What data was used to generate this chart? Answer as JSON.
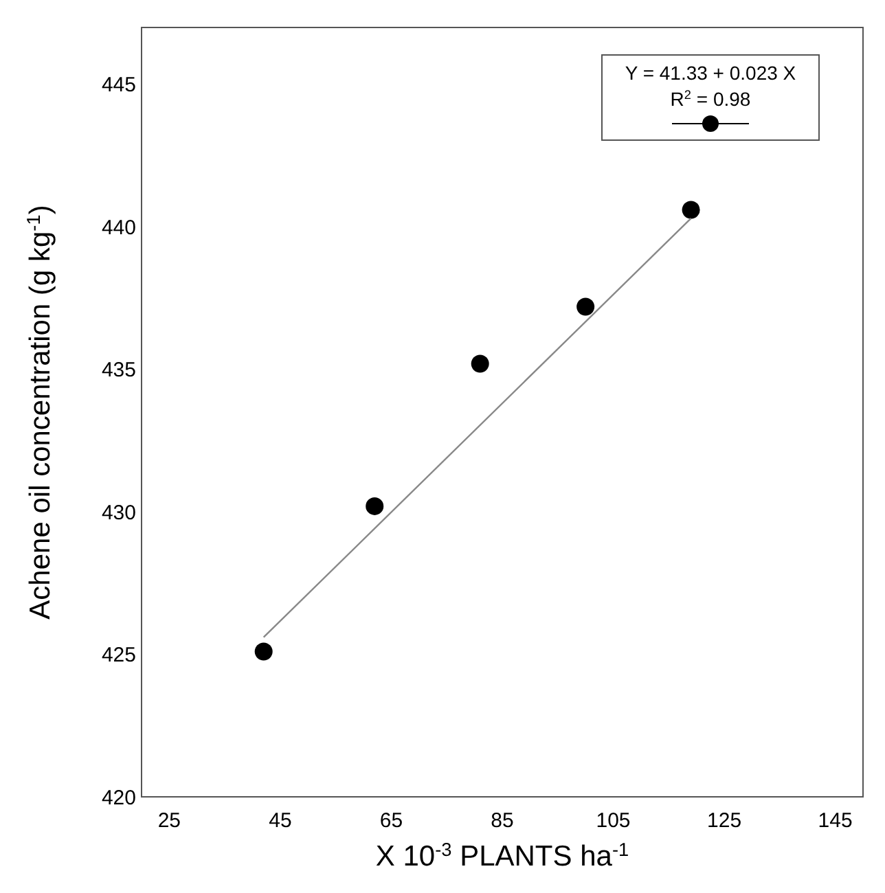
{
  "chart_data": {
    "type": "scatter",
    "xlabel": "X 10$^{-3}$ PLANTS ha$^{-1}$",
    "ylabel": "Achene oil concentration (g kg$^{-1}$)",
    "xlim": [
      20,
      150
    ],
    "xticks": [
      25,
      45,
      65,
      85,
      105,
      125,
      145
    ],
    "ylim": [
      420,
      447
    ],
    "yticks": [
      420,
      425,
      430,
      435,
      440,
      445
    ],
    "grid": false,
    "series": [
      {
        "type": "scatter",
        "color": "#000000",
        "marker": "circle",
        "x": [
          42,
          62,
          81,
          100,
          119
        ],
        "values": [
          425.1,
          430.2,
          435.2,
          437.2,
          440.6
        ]
      },
      {
        "type": "line",
        "color": "#888888",
        "marker": "none",
        "x": [
          42,
          119
        ],
        "values": [
          425.6,
          440.3
        ],
        "line_style": "solid"
      }
    ],
    "annotations": [
      "Y = 41.33 + 0.023 X",
      "R$^{2}$ = 0.98"
    ]
  }
}
